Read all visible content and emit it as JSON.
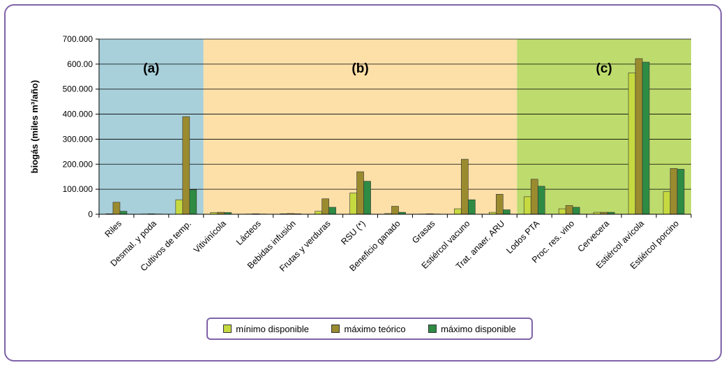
{
  "chart_data": {
    "type": "bar",
    "ylabel": "biogás (miles m³/año)",
    "y_ticks": [
      "0",
      "100.000",
      "200.000",
      "300.000",
      "400.000",
      "500.000",
      "600.00",
      "700.000"
    ],
    "ylim": [
      0,
      700
    ],
    "categories": [
      "Riles",
      "Desmal. y poda",
      "Cultivos de temp.",
      "Vitivinícola",
      "Lácteos",
      "Bebidas infusión",
      "Frutas y verduras",
      "RSU (*)",
      "Beneficio ganado",
      "Grasas",
      "Estiércol vacuno",
      "Trat. anaer. ARU",
      "Lodos PTA",
      "Proc. res. vino",
      "Cervecera",
      "Estiércol avícola",
      "Estiércol porcino"
    ],
    "series": [
      {
        "name": "mínimo disponible",
        "color": "#c6d940",
        "values": [
          2,
          1,
          58,
          7,
          1,
          2,
          12,
          85,
          3,
          1,
          22,
          8,
          70,
          22,
          8,
          565,
          90
        ]
      },
      {
        "name": "máximo teórico",
        "color": "#9b8b2f",
        "values": [
          48,
          2,
          390,
          8,
          2,
          3,
          62,
          170,
          32,
          2,
          220,
          80,
          140,
          35,
          8,
          622,
          183
        ]
      },
      {
        "name": "máximo disponible",
        "color": "#2e8b44",
        "values": [
          12,
          1,
          98,
          7,
          1,
          2,
          28,
          132,
          8,
          1,
          58,
          18,
          112,
          28,
          8,
          608,
          180
        ]
      }
    ],
    "regions": [
      {
        "label": "(a)",
        "from": 0,
        "to": 3,
        "color": "#a8d0da"
      },
      {
        "label": "(b)",
        "from": 3,
        "to": 12,
        "color": "#fde0a8"
      },
      {
        "label": "(c)",
        "from": 12,
        "to": 17,
        "color": "#bedb6e"
      }
    ],
    "grid": true,
    "legend_position": "bottom"
  }
}
